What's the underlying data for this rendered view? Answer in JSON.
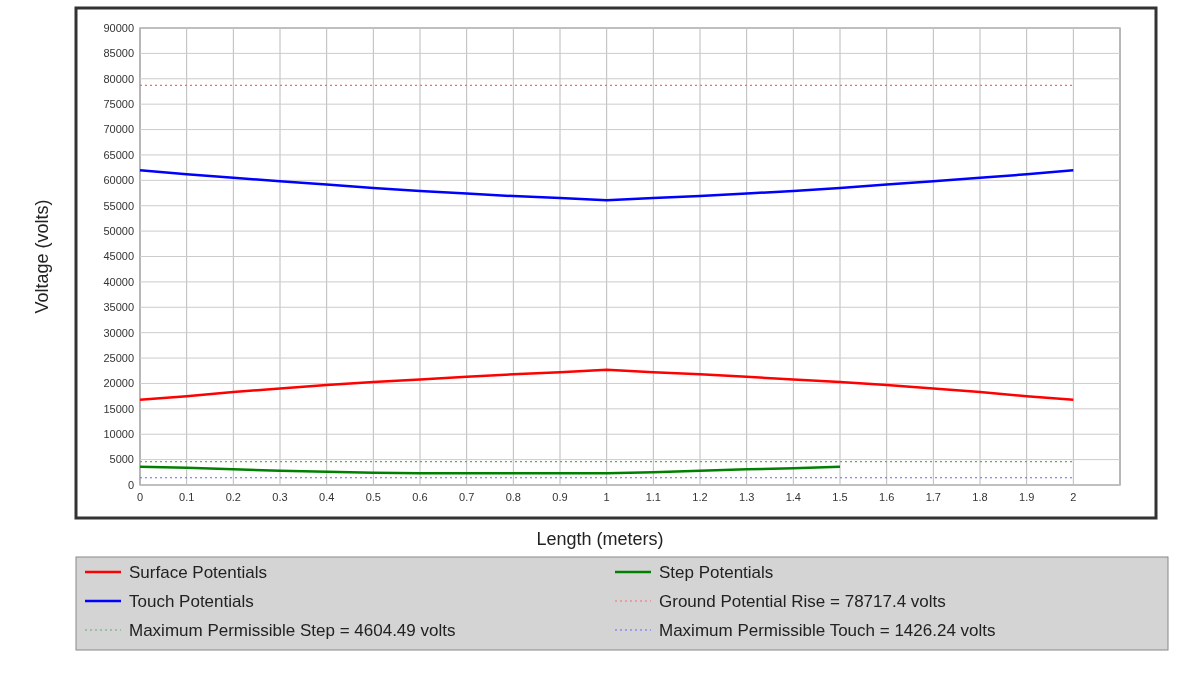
{
  "chart_data": {
    "type": "line",
    "xlabel": "Length (meters)",
    "ylabel": "Voltage (volts)",
    "xlim": [
      0,
      2.1
    ],
    "xticks": [
      0,
      0.1,
      0.2,
      0.3,
      0.4,
      0.5,
      0.6,
      0.7,
      0.8,
      0.9,
      1,
      1.1,
      1.2,
      1.3,
      1.4,
      1.5,
      1.6,
      1.7,
      1.8,
      1.9,
      2,
      {
        "value": 2.1,
        "label": null
      }
    ],
    "ylim": [
      0,
      90000
    ],
    "yticks": [
      0,
      5000,
      10000,
      15000,
      20000,
      25000,
      30000,
      35000,
      40000,
      45000,
      50000,
      55000,
      60000,
      65000,
      70000,
      75000,
      80000,
      85000,
      90000
    ],
    "grid": true,
    "legend": "bottom",
    "line_style": "solid",
    "x": [
      0,
      0.1,
      0.2,
      0.3,
      0.4,
      0.5,
      0.6,
      0.7,
      0.8,
      0.9,
      1,
      1.1,
      1.2,
      1.3,
      1.4,
      1.5,
      1.6,
      1.7,
      1.8,
      1.9,
      2
    ],
    "series": [
      {
        "name": "Surface Potentials",
        "color": "#ff0000",
        "values": [
          16800,
          17500,
          18300,
          19000,
          19700,
          20300,
          20800,
          21300,
          21800,
          22200,
          22700,
          22200,
          21800,
          21300,
          20800,
          20300,
          19700,
          19000,
          18300,
          17500,
          16800
        ]
      },
      {
        "name": "Touch Potentials",
        "color": "#0000ff",
        "values": [
          62000,
          61200,
          60500,
          59800,
          59200,
          58500,
          57900,
          57400,
          56900,
          56500,
          56100,
          56500,
          56900,
          57400,
          57900,
          58500,
          59200,
          59800,
          60500,
          61200,
          62000
        ]
      },
      {
        "name": "Step Potentials",
        "color": "#008000",
        "x": [
          0,
          0.1,
          0.2,
          0.3,
          0.4,
          0.5,
          0.6,
          0.7,
          0.8,
          0.9,
          1,
          1.1,
          1.2,
          1.3,
          1.4,
          1.5
        ],
        "values": [
          3600,
          3400,
          3100,
          2800,
          2600,
          2400,
          2300,
          2300,
          2300,
          2300,
          2300,
          2500,
          2800,
          3100,
          3300,
          3600
        ]
      }
    ],
    "ref_lines": [
      {
        "axis": "y",
        "value": 78717.4,
        "label": "Ground Potential Rise = 78717.4 volts",
        "color": "#ff6666",
        "line_style": "dotted"
      },
      {
        "axis": "y",
        "value": 4604.49,
        "label": "Maximum Permissible Step = 4604.49 volts",
        "color": "#66aa66",
        "line_style": "dotted"
      },
      {
        "axis": "y",
        "value": 1426.24,
        "label": "Maximum Permissible Touch = 1426.24 volts",
        "color": "#6666ff",
        "line_style": "dotted"
      }
    ]
  }
}
